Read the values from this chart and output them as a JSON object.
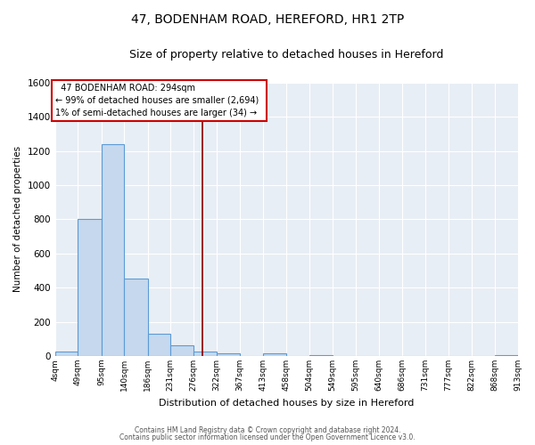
{
  "title": "47, BODENHAM ROAD, HEREFORD, HR1 2TP",
  "subtitle": "Size of property relative to detached houses in Hereford",
  "xlabel": "Distribution of detached houses by size in Hereford",
  "ylabel": "Number of detached properties",
  "bin_edges": [
    4,
    49,
    95,
    140,
    186,
    231,
    276,
    322,
    367,
    413,
    458,
    504,
    549,
    595,
    640,
    686,
    731,
    777,
    822,
    868,
    913
  ],
  "bar_heights": [
    25,
    800,
    1240,
    455,
    130,
    65,
    25,
    15,
    0,
    15,
    0,
    5,
    0,
    0,
    0,
    0,
    0,
    0,
    0,
    5
  ],
  "bar_color": "#c5d8ee",
  "bar_edge_color": "#5b9bd5",
  "red_line_x": 294,
  "ylim": [
    0,
    1600
  ],
  "yticks": [
    0,
    200,
    400,
    600,
    800,
    1000,
    1200,
    1400,
    1600
  ],
  "annotation_title": "47 BODENHAM ROAD: 294sqm",
  "annotation_line1": "← 99% of detached houses are smaller (2,694)",
  "annotation_line2": "1% of semi-detached houses are larger (34) →",
  "footer_line1": "Contains HM Land Registry data © Crown copyright and database right 2024.",
  "footer_line2": "Contains public sector information licensed under the Open Government Licence v3.0.",
  "background_color": "#ffffff",
  "plot_bg_color": "#e8eef5",
  "grid_color": "#ffffff",
  "title_fontsize": 10,
  "subtitle_fontsize": 9,
  "annotation_box_edge_color": "#cc0000",
  "red_line_color": "#8b0000"
}
